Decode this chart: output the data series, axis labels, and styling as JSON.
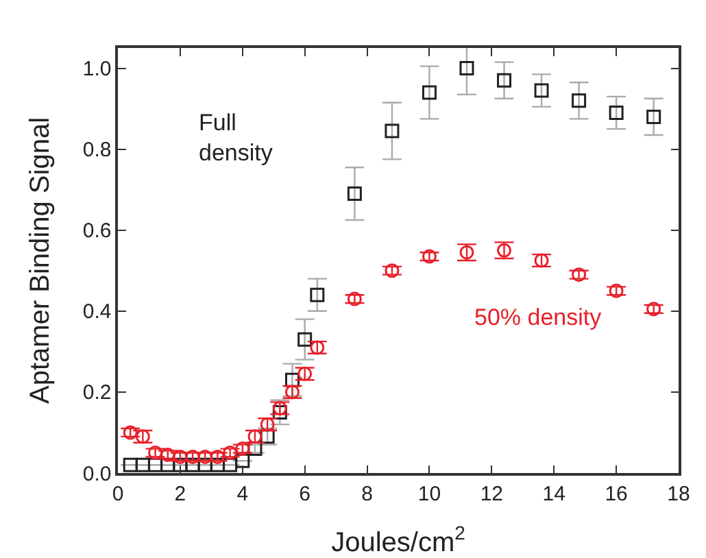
{
  "chart_data": {
    "type": "scatter",
    "xlabel": "Joules/cm$^{2}$",
    "ylabel": "Aptamer Binding Signal",
    "x": [
      0.4,
      0.8,
      1.2,
      1.6,
      2.0,
      2.4,
      2.8,
      3.2,
      3.6,
      4.0,
      4.4,
      4.8,
      5.2,
      5.6,
      6.0,
      6.4,
      7.6,
      8.8,
      10,
      11.2,
      12.4,
      13.6,
      14.8,
      16,
      17.2
    ],
    "series": [
      {
        "name": "Full density",
        "color": "#222222",
        "marker": "square",
        "values": [
          0.02,
          0.02,
          0.02,
          0.02,
          0.02,
          0.02,
          0.02,
          0.02,
          0.02,
          0.03,
          0.06,
          0.09,
          0.15,
          0.23,
          0.33,
          0.44,
          0.69,
          0.845,
          0.94,
          1.0,
          0.97,
          0.945,
          0.92,
          0.89,
          0.88
        ],
        "errors": [
          null,
          null,
          null,
          null,
          null,
          null,
          null,
          null,
          null,
          null,
          0.01,
          0.02,
          0.03,
          0.04,
          0.05,
          0.04,
          0.065,
          0.07,
          0.065,
          0.065,
          0.045,
          0.04,
          0.045,
          0.04,
          0.045
        ]
      },
      {
        "name": "50% density",
        "color": "#e8202a",
        "marker": "circle",
        "values": [
          0.1,
          0.09,
          0.05,
          0.045,
          0.04,
          0.04,
          0.04,
          0.04,
          0.05,
          0.06,
          0.09,
          0.12,
          0.16,
          0.2,
          0.245,
          0.31,
          0.43,
          0.5,
          0.535,
          0.545,
          0.55,
          0.525,
          0.49,
          0.45,
          0.405
        ],
        "errors": [
          0.01,
          0.015,
          0.01,
          0.01,
          0.01,
          0.01,
          0.01,
          0.01,
          0.01,
          0.01,
          0.015,
          0.015,
          0.015,
          0.015,
          0.015,
          0.015,
          0.01,
          0.01,
          0.01,
          0.02,
          0.02,
          0.015,
          0.01,
          0.01,
          0.01
        ]
      }
    ],
    "xlim": [
      0,
      18
    ],
    "xticks": [
      0,
      2,
      4,
      6,
      8,
      10,
      12,
      14,
      16,
      18
    ],
    "ylim": [
      0,
      1.05
    ],
    "yticks": [
      {
        "value": 0,
        "label": "0.0"
      },
      {
        "value": 0.2,
        "label": "0.2"
      },
      {
        "value": 0.4,
        "label": "0.4"
      },
      {
        "value": 0.6,
        "label": "0.6"
      },
      {
        "value": 0.8,
        "label": "0.8"
      },
      {
        "value": 1,
        "label": "1.0"
      }
    ],
    "grid": false,
    "legend": false
  }
}
